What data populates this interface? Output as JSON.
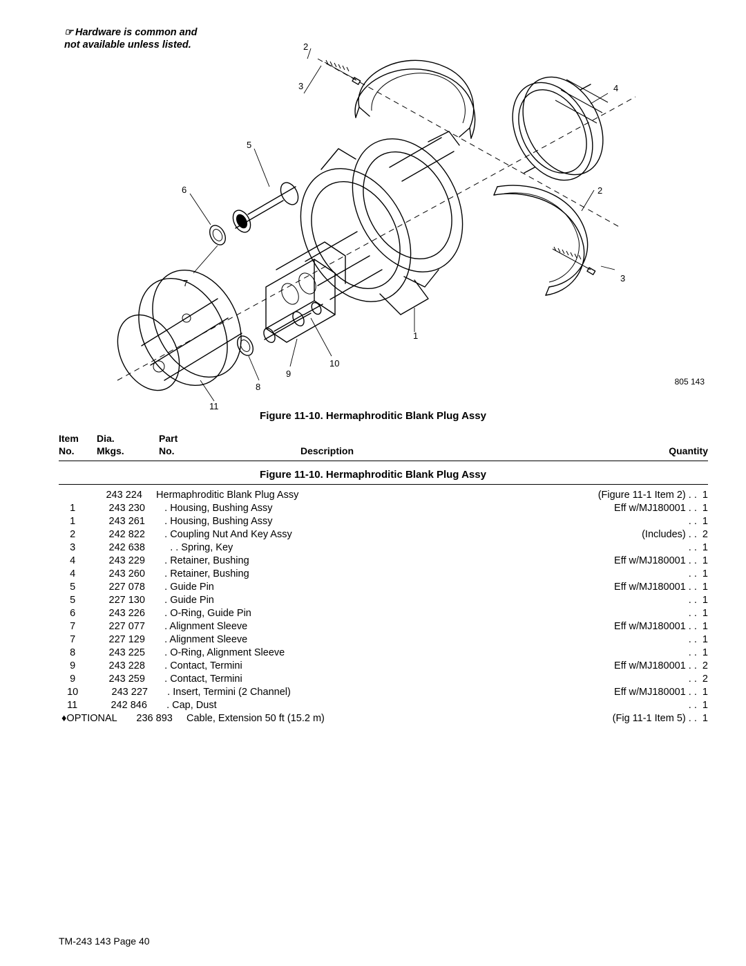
{
  "note": {
    "icon": "☞",
    "line1": "Hardware is common and",
    "line2": "not available unless listed."
  },
  "diagram": {
    "ref_id": "805 143",
    "callouts": [
      "1",
      "2",
      "3",
      "4",
      "5",
      "6",
      "7",
      "8",
      "9",
      "10",
      "11",
      "3",
      "2"
    ]
  },
  "figure_caption": "Figure 11-10. Hermaphroditic Blank Plug Assy",
  "header": {
    "c1_top": "Item",
    "c1_bot": "No.",
    "c2_top": "Dia.",
    "c2_bot": "Mkgs.",
    "c3_top": "Part",
    "c3_bot": "No.",
    "c4": "Description",
    "c5": "Quantity"
  },
  "parts": [
    {
      "left": "                 243 224     Hermaphroditic Blank Plug Assy",
      "right": "(Figure 11-1 Item 2) . .  1"
    },
    {
      "left": "    1            243 230       . Housing, Bushing Assy",
      "right": "Eff w/MJ180001 . .  1"
    },
    {
      "left": "    1            243 261       . Housing, Bushing Assy",
      "right": ". .  1"
    },
    {
      "left": "    2            242 822       . Coupling Nut And Key Assy",
      "right": "(Includes) . .  2"
    },
    {
      "left": "    3            242 638         . . Spring, Key",
      "right": ". .  1"
    },
    {
      "left": "    4            243 229       . Retainer, Bushing",
      "right": "Eff w/MJ180001 . .  1"
    },
    {
      "left": "    4            243 260       . Retainer, Bushing",
      "right": ". .  1"
    },
    {
      "left": "    5            227 078       . Guide Pin",
      "right": "Eff w/MJ180001 . .  1"
    },
    {
      "left": "    5            227 130       . Guide Pin",
      "right": ". .  1"
    },
    {
      "left": "    6            243 226       . O-Ring, Guide Pin",
      "right": ". .  1"
    },
    {
      "left": "    7            227 077       . Alignment Sleeve",
      "right": "Eff w/MJ180001 . .  1"
    },
    {
      "left": "    7            227 129       . Alignment Sleeve",
      "right": ". .  1"
    },
    {
      "left": "    8            243 225       . O-Ring, Alignment Sleeve",
      "right": ". .  1"
    },
    {
      "left": "    9            243 228       . Contact, Termini",
      "right": "Eff w/MJ180001 . .  2"
    },
    {
      "left": "    9            243 259       . Contact, Termini",
      "right": ". .  2"
    },
    {
      "left": "   10            243 227       . Insert, Termini (2 Channel)",
      "right": "Eff w/MJ180001 . .  1"
    },
    {
      "left": "   11            242 846       . Cap, Dust",
      "right": ". .  1"
    },
    {
      "left": " ♦OPTIONAL       236 893     Cable, Extension 50 ft (15.2 m)",
      "right": "(Fig 11-1 Item 5) . .  1"
    }
  ],
  "page_number": "TM-243 143 Page 40"
}
